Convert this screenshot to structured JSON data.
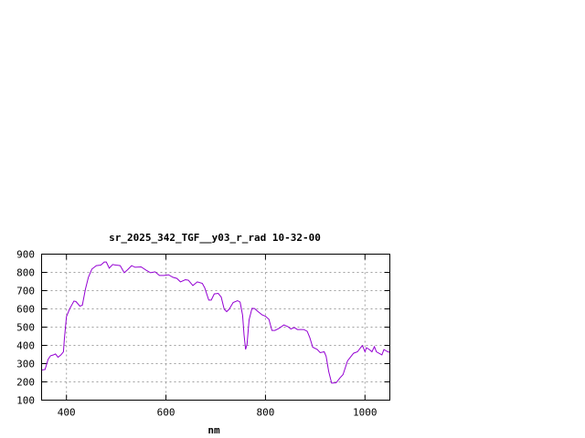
{
  "chart_data": {
    "type": "line",
    "title": "sr_2025_342_TGF__y03_r_rad 10-32-00",
    "xlabel": "nm",
    "ylabel": "",
    "xlim": [
      350,
      1050
    ],
    "ylim": [
      100,
      900
    ],
    "xticks": [
      400,
      600,
      800,
      1000
    ],
    "yticks": [
      100,
      200,
      300,
      400,
      500,
      600,
      700,
      800,
      900
    ],
    "grid": true,
    "line_color": "#9400d3",
    "series": [
      {
        "x": [
          350,
          357,
          363,
          368,
          374,
          378,
          383,
          389,
          394,
          396,
          400,
          406,
          415,
          419,
          427,
          432,
          438,
          444,
          451,
          460,
          469,
          476,
          480,
          486,
          493,
          499,
          508,
          516,
          523,
          531,
          538,
          550,
          560,
          569,
          578,
          587,
          596,
          605,
          614,
          622,
          629,
          639,
          645,
          654,
          663,
          673,
          678,
          686,
          691,
          697,
          705,
          711,
          717,
          722,
          727,
          735,
          744,
          749,
          754,
          757,
          760,
          763,
          767,
          773,
          778,
          785,
          793,
          800,
          807,
          813,
          819,
          827,
          837,
          845,
          851,
          858,
          864,
          877,
          884,
          889,
          895,
          904,
          910,
          918,
          922,
          927,
          933,
          942,
          950,
          956,
          965,
          977,
          985,
          992,
          995,
          1000,
          1003,
          1009,
          1014,
          1019,
          1023,
          1034,
          1038,
          1046,
          1050
        ],
        "y": [
          265,
          268,
          323,
          343,
          348,
          353,
          335,
          348,
          365,
          440,
          557,
          598,
          643,
          640,
          615,
          620,
          707,
          773,
          818,
          837,
          840,
          857,
          857,
          823,
          843,
          840,
          837,
          798,
          815,
          837,
          828,
          830,
          812,
          798,
          803,
          783,
          783,
          787,
          773,
          767,
          748,
          760,
          757,
          728,
          748,
          740,
          715,
          648,
          648,
          682,
          685,
          665,
          598,
          585,
          598,
          635,
          645,
          637,
          565,
          457,
          378,
          407,
          540,
          603,
          602,
          585,
          568,
          560,
          543,
          482,
          482,
          493,
          512,
          503,
          490,
          498,
          487,
          487,
          477,
          443,
          390,
          378,
          360,
          365,
          340,
          257,
          193,
          195,
          223,
          240,
          315,
          357,
          365,
          390,
          398,
          365,
          387,
          377,
          365,
          393,
          365,
          348,
          377,
          365,
          362
        ]
      }
    ]
  }
}
